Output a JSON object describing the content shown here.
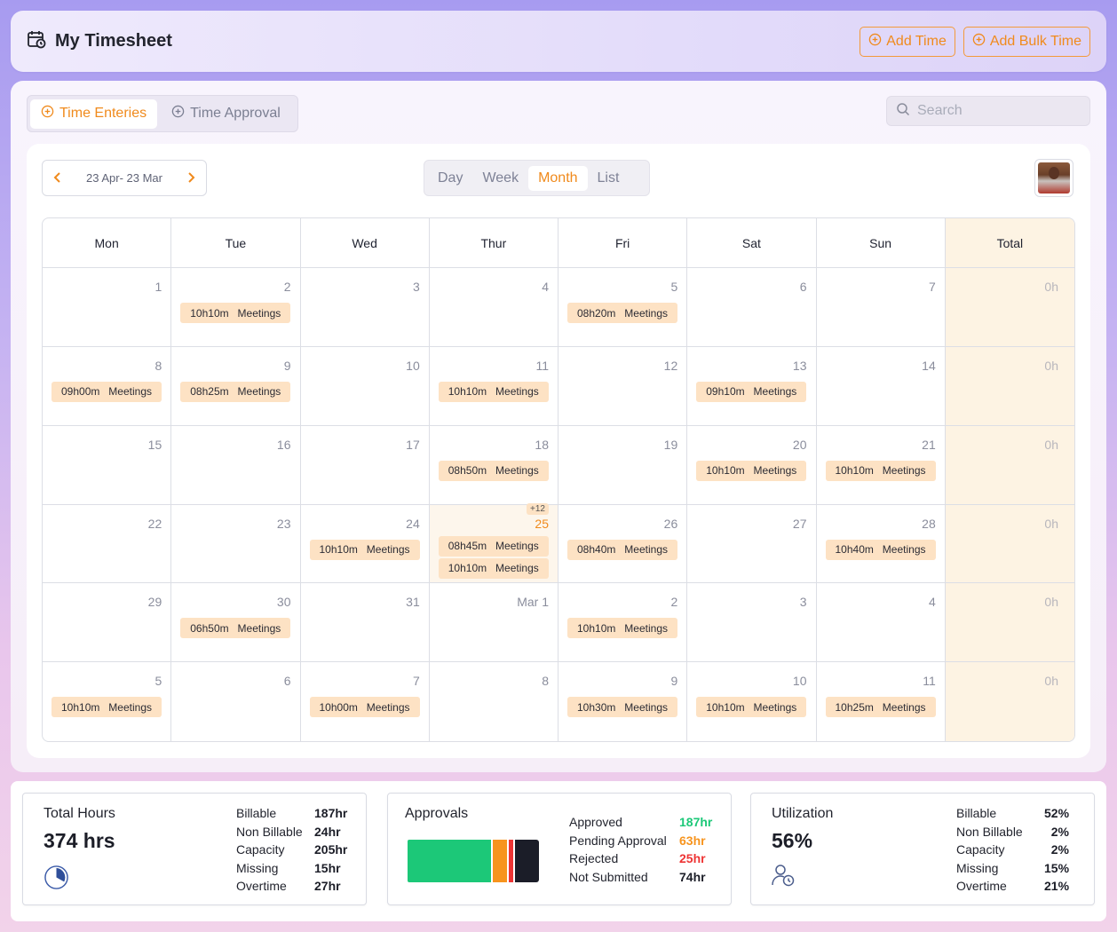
{
  "header": {
    "title": "My Timesheet",
    "add_time": "Add Time",
    "add_bulk_time": "Add Bulk Time",
    "accent": "#f08a1c"
  },
  "tabs": [
    "Time Enteries",
    "Time Approval"
  ],
  "active_tab": "Time Enteries",
  "search": {
    "placeholder": "Search"
  },
  "range": {
    "label": "23 Apr- 23 Mar"
  },
  "views": [
    "Day",
    "Week",
    "Month",
    "List"
  ],
  "active_view": "Month",
  "calendar": {
    "headers": [
      "Mon",
      "Tue",
      "Wed",
      "Thur",
      "Fri",
      "Sat",
      "Sun",
      "Total"
    ],
    "rows": [
      {
        "cells": [
          {
            "day": "1"
          },
          {
            "day": "2",
            "entries": [
              {
                "time": "10h10m",
                "type": "Meetings"
              }
            ]
          },
          {
            "day": "3"
          },
          {
            "day": "4"
          },
          {
            "day": "5",
            "entries": [
              {
                "time": "08h20m",
                "type": "Meetings"
              }
            ]
          },
          {
            "day": "6"
          },
          {
            "day": "7"
          }
        ],
        "total": "0h"
      },
      {
        "cells": [
          {
            "day": "8",
            "entries": [
              {
                "time": "09h00m",
                "type": "Meetings"
              }
            ]
          },
          {
            "day": "9",
            "entries": [
              {
                "time": "08h25m",
                "type": "Meetings"
              }
            ]
          },
          {
            "day": "10"
          },
          {
            "day": "11",
            "entries": [
              {
                "time": "10h10m",
                "type": "Meetings"
              }
            ]
          },
          {
            "day": "12"
          },
          {
            "day": "13",
            "entries": [
              {
                "time": "09h10m",
                "type": "Meetings"
              }
            ]
          },
          {
            "day": "14"
          }
        ],
        "total": "0h"
      },
      {
        "cells": [
          {
            "day": "15"
          },
          {
            "day": "16"
          },
          {
            "day": "17"
          },
          {
            "day": "18",
            "entries": [
              {
                "time": "08h50m",
                "type": "Meetings"
              }
            ]
          },
          {
            "day": "19"
          },
          {
            "day": "20",
            "entries": [
              {
                "time": "10h10m",
                "type": "Meetings"
              }
            ]
          },
          {
            "day": "21",
            "entries": [
              {
                "time": "10h10m",
                "type": "Meetings"
              }
            ]
          }
        ],
        "total": "0h"
      },
      {
        "cells": [
          {
            "day": "22"
          },
          {
            "day": "23"
          },
          {
            "day": "24",
            "entries": [
              {
                "time": "10h10m",
                "type": "Meetings"
              }
            ]
          },
          {
            "day": "25",
            "today": true,
            "more": "+12",
            "entries": [
              {
                "time": "08h45m",
                "type": "Meetings"
              },
              {
                "time": "10h10m",
                "type": "Meetings"
              }
            ]
          },
          {
            "day": "26",
            "entries": [
              {
                "time": "08h40m",
                "type": "Meetings"
              }
            ]
          },
          {
            "day": "27"
          },
          {
            "day": "28",
            "entries": [
              {
                "time": "10h40m",
                "type": "Meetings"
              }
            ]
          }
        ],
        "total": "0h"
      },
      {
        "cells": [
          {
            "day": "29"
          },
          {
            "day": "30",
            "entries": [
              {
                "time": "06h50m",
                "type": "Meetings"
              }
            ]
          },
          {
            "day": "31"
          },
          {
            "day": "Mar 1"
          },
          {
            "day": "2",
            "entries": [
              {
                "time": "10h10m",
                "type": "Meetings"
              }
            ]
          },
          {
            "day": "3"
          },
          {
            "day": "4"
          }
        ],
        "total": "0h"
      },
      {
        "cells": [
          {
            "day": "5",
            "entries": [
              {
                "time": "10h10m",
                "type": "Meetings"
              }
            ]
          },
          {
            "day": "6"
          },
          {
            "day": "7",
            "entries": [
              {
                "time": "10h00m",
                "type": "Meetings"
              }
            ]
          },
          {
            "day": "8"
          },
          {
            "day": "9",
            "entries": [
              {
                "time": "10h30m",
                "type": "Meetings"
              }
            ]
          },
          {
            "day": "10",
            "entries": [
              {
                "time": "10h10m",
                "type": "Meetings"
              }
            ]
          },
          {
            "day": "11",
            "entries": [
              {
                "time": "10h25m",
                "type": "Meetings"
              }
            ]
          }
        ],
        "total": "0h"
      }
    ]
  },
  "total_hours": {
    "title": "Total Hours",
    "value": "374 hrs",
    "items": [
      {
        "k": "Billable",
        "v": "187hr"
      },
      {
        "k": "Non Billable",
        "v": "24hr"
      },
      {
        "k": "Capacity",
        "v": "205hr"
      },
      {
        "k": "Missing",
        "v": "15hr"
      },
      {
        "k": "Overtime",
        "v": "27hr"
      }
    ]
  },
  "approvals": {
    "title": "Approvals",
    "items": [
      {
        "k": "Approved",
        "v": "187hr",
        "color": "#1cc878"
      },
      {
        "k": "Pending Approval",
        "v": "63hr",
        "color": "#f7941d"
      },
      {
        "k": "Rejected",
        "v": "25hr",
        "color": "#ee3434"
      },
      {
        "k": "Not Submitted",
        "v": "74hr",
        "color": "#1b1d28"
      }
    ]
  },
  "utilization": {
    "title": "Utilization",
    "value": "56%",
    "items": [
      {
        "k": "Billable",
        "v": "52%"
      },
      {
        "k": "Non Billable",
        "v": "2%"
      },
      {
        "k": "Capacity",
        "v": "2%"
      },
      {
        "k": "Missing",
        "v": "15%"
      },
      {
        "k": "Overtime",
        "v": "21%"
      }
    ]
  }
}
